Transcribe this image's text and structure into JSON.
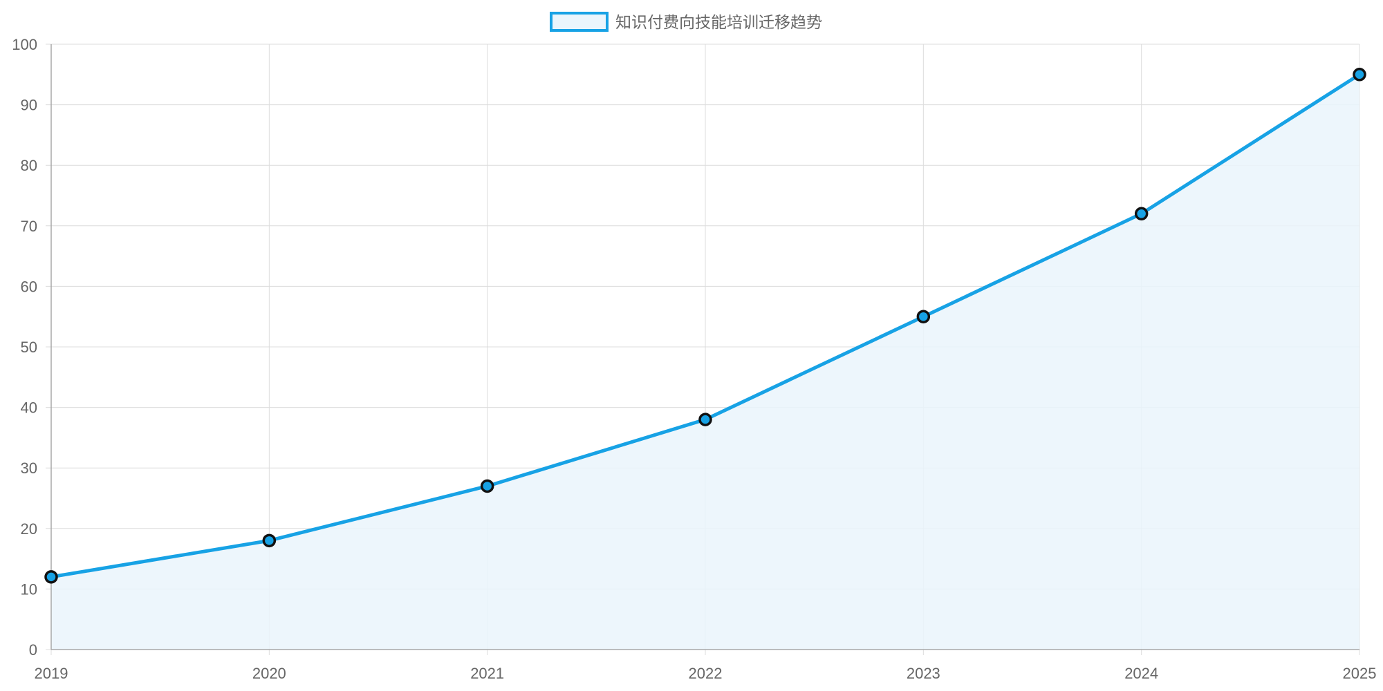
{
  "chart_data": {
    "type": "area",
    "x": [
      "2019",
      "2020",
      "2021",
      "2022",
      "2023",
      "2024",
      "2025"
    ],
    "series": [
      {
        "name": "知识付费向技能培训迁移趋势",
        "values": [
          12,
          18,
          27,
          38,
          55,
          72,
          95
        ]
      }
    ],
    "ylim": [
      0,
      100
    ],
    "y_ticks": [
      "0",
      "10",
      "20",
      "30",
      "40",
      "50",
      "60",
      "70",
      "80",
      "90",
      "100"
    ],
    "grid": true,
    "legend_position": "top-center",
    "colors": {
      "line": "#17a2e5",
      "fill": "#eaf5fc",
      "point_border": "#111111",
      "grid": "#dcdcdc",
      "text": "#666666"
    }
  }
}
